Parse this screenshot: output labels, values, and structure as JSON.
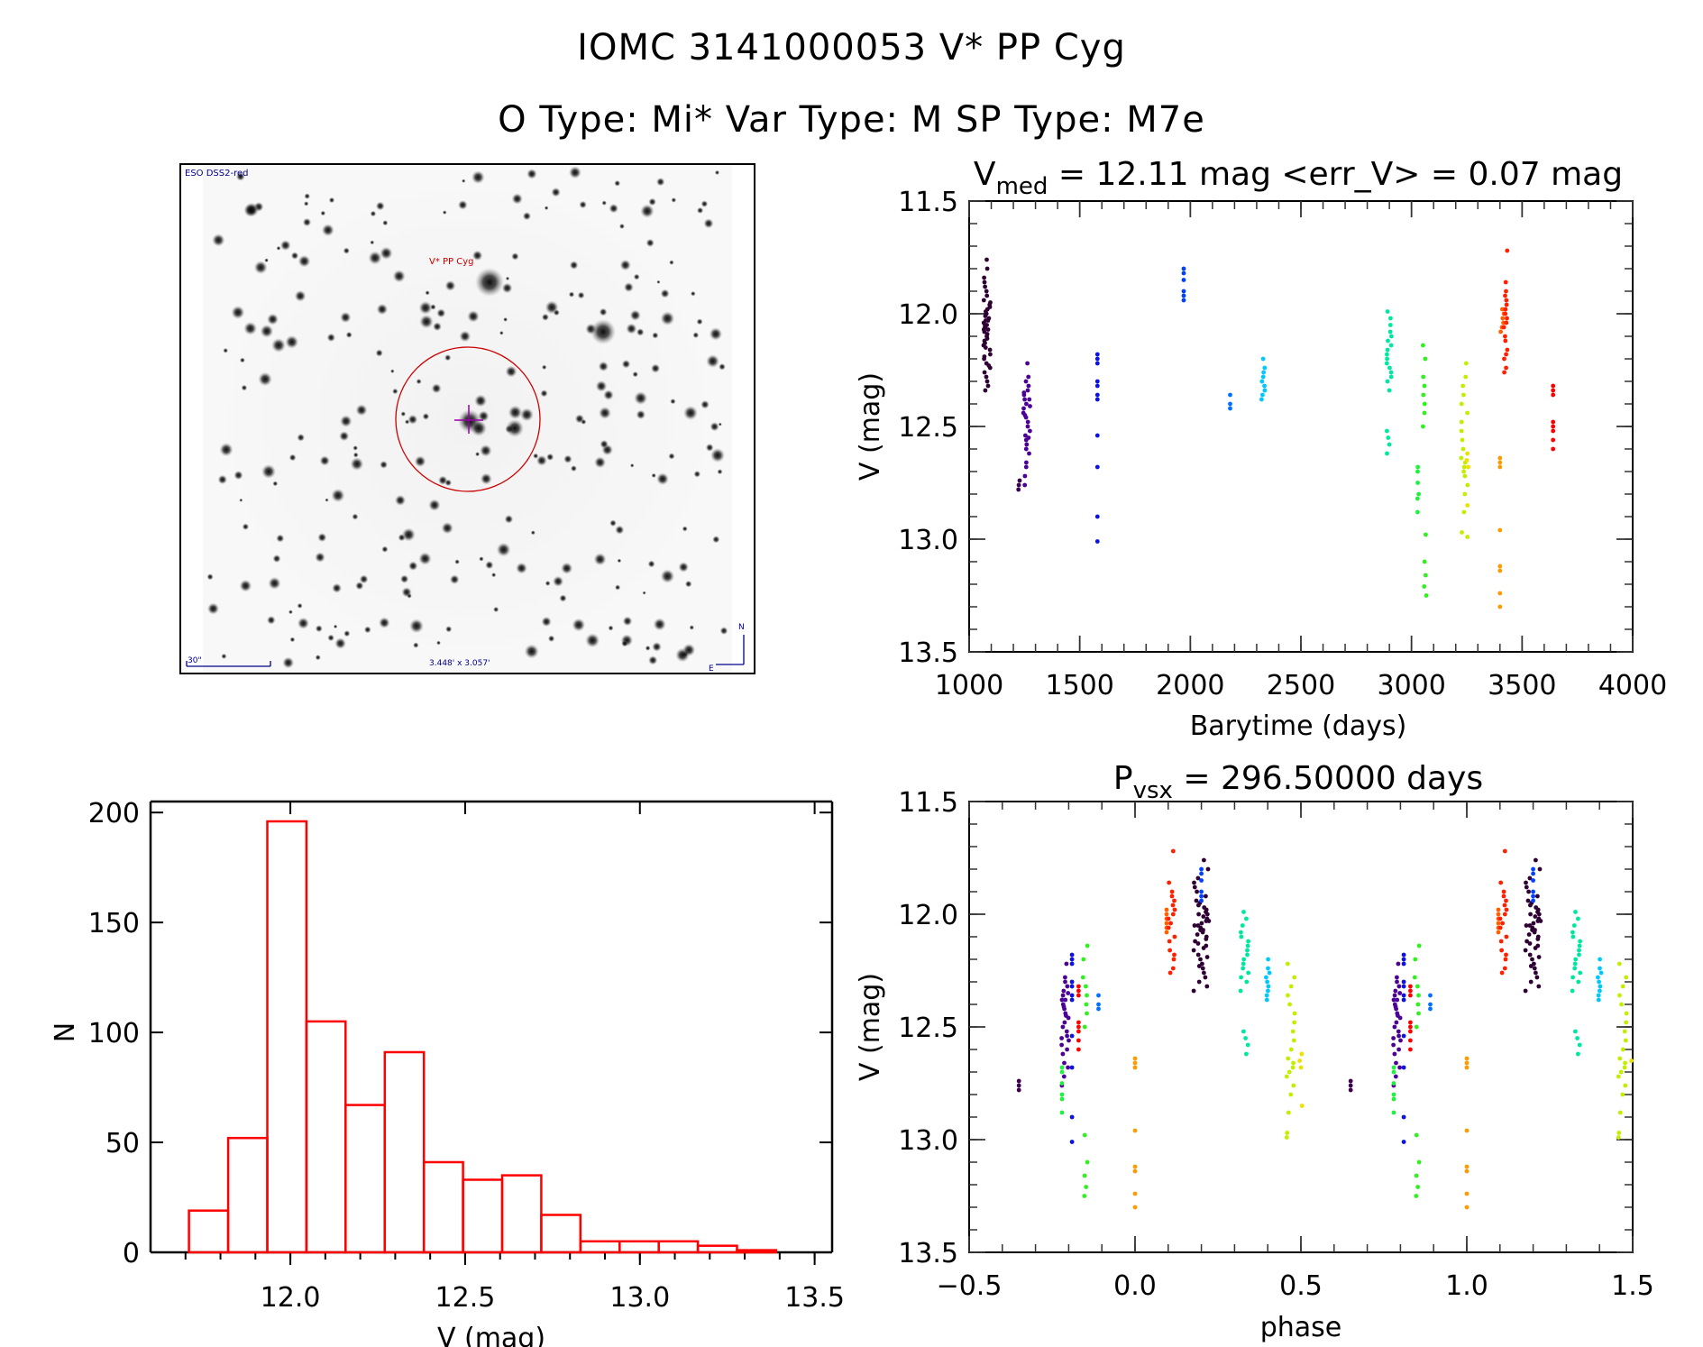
{
  "header": {
    "title_line1": "IOMC 3141000053   V* PP Cyg",
    "title_line2": "O Type: Mi*  Var Type: M  SP Type: M7e"
  },
  "finder_chart": {
    "survey_label": "ESO DSS2-red",
    "target_label": "V* PP Cyg",
    "scale_bar_label": "30\"",
    "field_size_label": "3.448' x 3.057'",
    "north_label": "N",
    "east_label": "E",
    "colors": {
      "annotation": "#00008b",
      "target": "#cc0000",
      "crosshair": "#9900aa"
    }
  },
  "chart_data": [
    {
      "id": "light_curve",
      "type": "scatter",
      "title_main": "V",
      "title_sub": "med",
      "title_rest": " = 12.11 mag <err_V> = 0.07 mag",
      "xlabel": "Barytime (days)",
      "ylabel": "V (mag)",
      "xlim": [
        1000,
        4000
      ],
      "ylim": [
        13.5,
        11.5
      ],
      "xticks": [
        1000,
        1500,
        2000,
        2500,
        3000,
        3500,
        4000
      ],
      "xtick_labels": [
        "1000",
        "1500",
        "2000",
        "2500",
        "3000",
        "3500",
        "4000"
      ],
      "yticks": [
        11.5,
        12.0,
        12.5,
        13.0,
        13.5
      ],
      "ytick_labels": [
        "11.5",
        "12.0",
        "12.5",
        "13.0",
        "13.5"
      ],
      "groups": [
        {
          "t": 1080,
          "color": "#2e0033",
          "spread": 4,
          "v": [
            11.76,
            11.8,
            11.84,
            11.88,
            11.9,
            11.92,
            11.94,
            11.96,
            11.98,
            12.0,
            12.01,
            12.02,
            12.03,
            12.04,
            12.05,
            12.06,
            12.07,
            12.08,
            12.09,
            12.1,
            12.12,
            12.14,
            12.16,
            12.18,
            12.2,
            12.22,
            12.24,
            12.26,
            12.28,
            12.3,
            12.32,
            12.34,
            11.86,
            11.95,
            12.0,
            12.05,
            12.11,
            12.15,
            12.19,
            12.23,
            11.99,
            12.03,
            12.07,
            11.97,
            12.13
          ]
        },
        {
          "t": 1225,
          "color": "#3a004e",
          "spread": 1,
          "v": [
            12.74,
            12.76,
            12.78
          ]
        },
        {
          "t": 1260,
          "color": "#4b0096",
          "spread": 4,
          "v": [
            12.22,
            12.3,
            12.32,
            12.34,
            12.36,
            12.38,
            12.4,
            12.42,
            12.44,
            12.46,
            12.48,
            12.5,
            12.52,
            12.54,
            12.56,
            12.58,
            12.6,
            12.62,
            12.66,
            12.68,
            12.72,
            12.76,
            12.28,
            12.35,
            12.45,
            12.55,
            12.38,
            12.41
          ]
        },
        {
          "t": 1580,
          "color": "#0a10ee",
          "spread": 0,
          "v": [
            12.18,
            12.2,
            12.22,
            12.3,
            12.32,
            12.36,
            12.38,
            12.54,
            12.68,
            12.9,
            13.01
          ]
        },
        {
          "t": 1970,
          "color": "#0040ff",
          "spread": 0,
          "v": [
            11.8,
            11.82,
            11.85,
            11.9,
            11.92,
            11.94
          ]
        },
        {
          "t": 2180,
          "color": "#0070ff",
          "spread": 0,
          "v": [
            12.36,
            12.4,
            12.42
          ]
        },
        {
          "t": 2330,
          "color": "#00c8ff",
          "spread": 2,
          "v": [
            12.2,
            12.24,
            12.26,
            12.28,
            12.3,
            12.32,
            12.34,
            12.36,
            12.38
          ]
        },
        {
          "t": 2900,
          "color": "#00e8a0",
          "spread": 3,
          "v": [
            11.99,
            12.02,
            12.05,
            12.08,
            12.1,
            12.12,
            12.14,
            12.16,
            12.18,
            12.2,
            12.22,
            12.24,
            12.26,
            12.28,
            12.3,
            12.34,
            12.52,
            12.55,
            12.58,
            12.62
          ]
        },
        {
          "t": 3030,
          "color": "#20f040",
          "spread": 1,
          "v": [
            12.68,
            12.7,
            12.75,
            12.8,
            12.82,
            12.88
          ]
        },
        {
          "t": 3060,
          "color": "#30f020",
          "spread": 2,
          "v": [
            12.14,
            12.2,
            12.28,
            12.32,
            12.36,
            12.4,
            12.44,
            12.5,
            12.98,
            13.1,
            13.16,
            13.21,
            13.25
          ]
        },
        {
          "t": 3240,
          "color": "#c0f000",
          "spread": 4,
          "v": [
            12.22,
            12.28,
            12.32,
            12.36,
            12.4,
            12.44,
            12.48,
            12.52,
            12.56,
            12.6,
            12.64,
            12.66,
            12.68,
            12.7,
            12.72,
            12.76,
            12.8,
            12.88,
            12.97,
            12.99
          ]
        },
        {
          "t": 3250,
          "color": "#f0e000",
          "spread": 2,
          "v": [
            12.62,
            12.65,
            12.68,
            12.85
          ]
        },
        {
          "t": 3400,
          "color": "#ff9a00",
          "spread": 0,
          "v": [
            12.64,
            12.66,
            12.68,
            12.96,
            13.12,
            13.14,
            13.24,
            13.3
          ]
        },
        {
          "t": 3410,
          "color": "#ff6000",
          "spread": 2,
          "v": [
            11.98,
            12.0,
            12.02,
            12.04,
            12.06,
            12.08
          ]
        },
        {
          "t": 3425,
          "color": "#ff2000",
          "spread": 2,
          "v": [
            11.72,
            11.86,
            11.9,
            11.92,
            11.94,
            11.96,
            11.98,
            12.0,
            12.02,
            12.04,
            12.06,
            12.1,
            12.12,
            12.16,
            12.18,
            12.2,
            12.24,
            12.26
          ]
        },
        {
          "t": 3640,
          "color": "#ff0000",
          "spread": 0,
          "v": [
            12.32,
            12.34,
            12.36,
            12.48,
            12.5,
            12.52,
            12.56,
            12.6
          ]
        }
      ]
    },
    {
      "id": "histogram",
      "type": "bar",
      "xlabel": "V (mag)",
      "ylabel": "N",
      "xlim": [
        11.6,
        13.55
      ],
      "ylim": [
        0,
        205
      ],
      "xticks": [
        12.0,
        12.5,
        13.0,
        13.5
      ],
      "xtick_labels": [
        "12.0",
        "12.5",
        "13.0",
        "13.5"
      ],
      "yticks": [
        0,
        50,
        100,
        150,
        200
      ],
      "ytick_labels": [
        "0",
        "50",
        "100",
        "150",
        "200"
      ],
      "bin_start": 11.71,
      "bin_width": 0.112,
      "values": [
        19,
        52,
        196,
        105,
        67,
        91,
        41,
        33,
        35,
        17,
        5,
        5,
        5,
        3,
        1
      ],
      "color": "#ff0000"
    },
    {
      "id": "phase_curve",
      "type": "scatter",
      "title_main": "P",
      "title_sub": "vsx",
      "title_rest": " = 296.50000 days",
      "period_days": 296.5,
      "epoch_phase_offset": 0.0,
      "xlabel": "phase",
      "ylabel": "V (mag)",
      "xlim": [
        -0.5,
        1.5
      ],
      "ylim": [
        13.5,
        11.5
      ],
      "xticks": [
        -0.5,
        0.0,
        0.5,
        1.0,
        1.5
      ],
      "xtick_labels": [
        "−0.5",
        "0.0",
        "0.5",
        "1.0",
        "1.5"
      ],
      "yticks": [
        11.5,
        12.0,
        12.5,
        13.0,
        13.5
      ],
      "ytick_labels": [
        "11.5",
        "12.0",
        "12.5",
        "13.0",
        "13.5"
      ],
      "groups": [
        {
          "phase": 0.2,
          "color": "#2e0033",
          "spread": 0.025,
          "ref": 0
        },
        {
          "phase": -0.35,
          "color": "#3a004e",
          "spread": 0.0,
          "ref": 1
        },
        {
          "phase": -0.21,
          "color": "#4b0096",
          "spread": 0.012,
          "ref": 2
        },
        {
          "phase": -0.19,
          "color": "#0a10ee",
          "spread": 0.0,
          "ref": 3
        },
        {
          "phase": 0.2,
          "color": "#0040ff",
          "spread": 0.0,
          "ref": 4
        },
        {
          "phase": -0.11,
          "color": "#0070ff",
          "spread": 0.0,
          "ref": 5
        },
        {
          "phase": 0.4,
          "color": "#00c8ff",
          "spread": 0.006,
          "ref": 6
        },
        {
          "phase": 0.33,
          "color": "#00e8a0",
          "spread": 0.012,
          "ref": 7
        },
        {
          "phase": -0.22,
          "color": "#20f040",
          "spread": 0.0,
          "ref": 8
        },
        {
          "phase": -0.15,
          "color": "#30f020",
          "spread": 0.008,
          "ref": 9
        },
        {
          "phase": 0.47,
          "color": "#c0f000",
          "spread": 0.015,
          "ref": 10
        },
        {
          "phase": 0.5,
          "color": "#f0e000",
          "spread": 0.006,
          "ref": 11
        },
        {
          "phase": 0.0,
          "color": "#ff9a00",
          "spread": 0.0,
          "ref": 12
        },
        {
          "phase": 0.095,
          "color": "#ff6000",
          "spread": 0.0,
          "ref": 13
        },
        {
          "phase": 0.11,
          "color": "#ff2000",
          "spread": 0.01,
          "ref": 14
        },
        {
          "phase": -0.17,
          "color": "#ff0000",
          "spread": 0.0,
          "ref": 15
        }
      ]
    }
  ]
}
